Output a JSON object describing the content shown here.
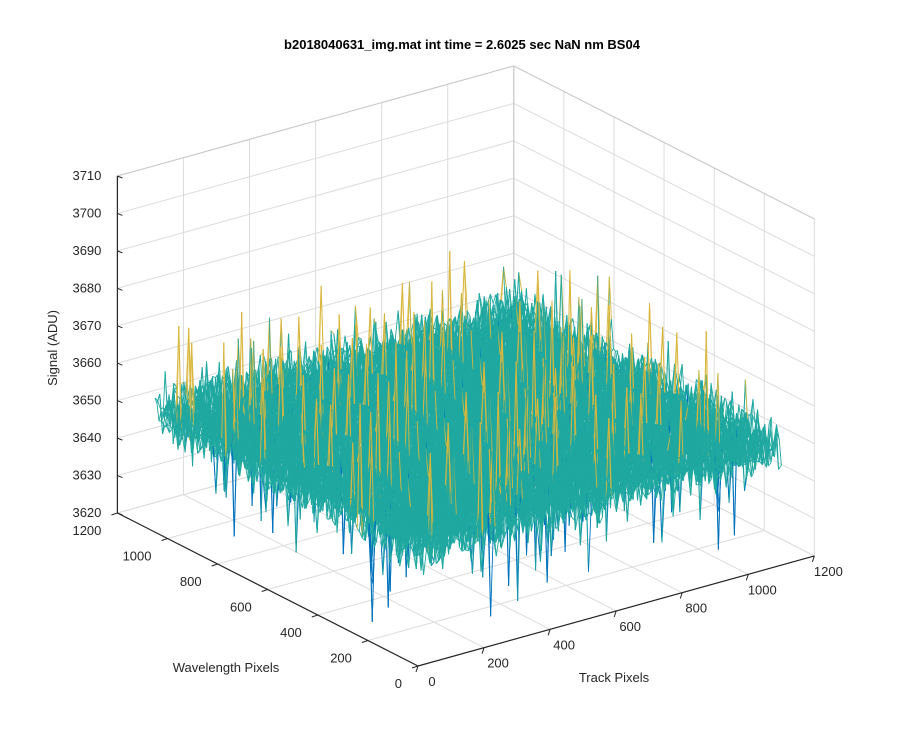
{
  "chart_data": {
    "type": "surface",
    "title": "b2018040631_img.mat int time = 2.6025 sec  NaN nm BS04",
    "xlabel": "Track Pixels",
    "ylabel": "Wavelength Pixels",
    "zlabel": "Signal (ADU)",
    "x_ticks": [
      "0",
      "200",
      "400",
      "600",
      "800",
      "1000",
      "1200"
    ],
    "y_ticks": [
      "0",
      "200",
      "400",
      "600",
      "800",
      "1000",
      "1200"
    ],
    "z_ticks": [
      "3620",
      "3630",
      "3640",
      "3650",
      "3660",
      "3670",
      "3680",
      "3690",
      "3700",
      "3710"
    ],
    "xlim": [
      0,
      1200
    ],
    "ylim": [
      0,
      1200
    ],
    "zlim": [
      3620,
      3710
    ],
    "x_extent": [
      0,
      1100
    ],
    "y_extent": [
      0,
      1050
    ],
    "z_mean": 3652,
    "z_noise_range": [
      3625,
      3705
    ],
    "grid": true,
    "colormap": "parula",
    "colors": {
      "low": "#0072bd",
      "mid": "#1fa8a0",
      "high": "#d9b63c",
      "axis": "#262626",
      "grid": "#dcdcdc"
    }
  }
}
